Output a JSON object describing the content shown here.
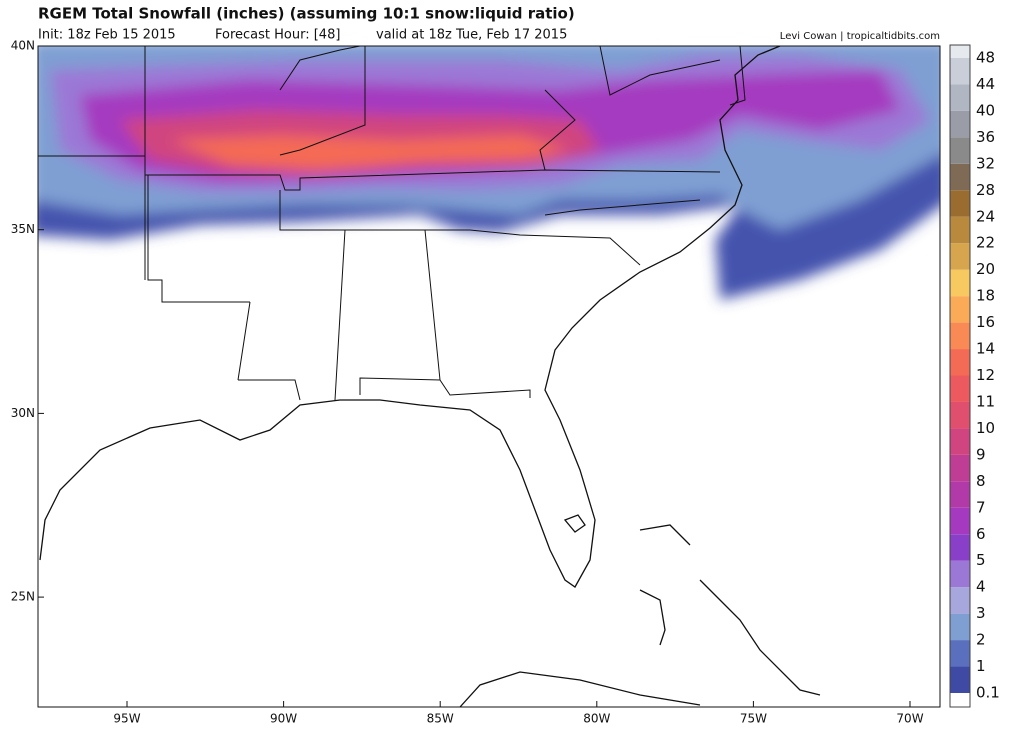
{
  "header": {
    "title": "RGEM Total Snowfall (inches) (assuming 10:1 snow:liquid ratio)",
    "init": "Init: 18z Feb 15 2015",
    "forecast_hour": "Forecast Hour: [48]",
    "valid": "valid at 18z Tue, Feb 17 2015",
    "credit": "Levi Cowan | tropicaltidbits.com"
  },
  "map": {
    "lat_labels": [
      "40N",
      "35N",
      "30N",
      "25N"
    ],
    "lon_labels": [
      "95W",
      "90W",
      "85W",
      "80W",
      "75W",
      "70W"
    ]
  },
  "colorbar": {
    "labels": [
      "0.1",
      "1",
      "2",
      "3",
      "4",
      "5",
      "6",
      "7",
      "8",
      "9",
      "10",
      "11",
      "12",
      "14",
      "16",
      "18",
      "20",
      "22",
      "24",
      "28",
      "32",
      "36",
      "40",
      "44",
      "48"
    ],
    "colors": [
      "#ffffff",
      "#3f4aa5",
      "#5a6fbe",
      "#7f9fd3",
      "#a7a6dd",
      "#9b78d6",
      "#8a3fc9",
      "#a53ac0",
      "#b23aa8",
      "#c03d95",
      "#d0457f",
      "#e0506e",
      "#ec5a60",
      "#f46b55",
      "#f98a55",
      "#fbaa58",
      "#f8c960",
      "#d6a54d",
      "#b98a3e",
      "#9a6c30",
      "#7f6a55",
      "#8a8a8a",
      "#9a9da8",
      "#b0b6c2",
      "#c9ced8",
      "#e6e9ee"
    ]
  }
}
